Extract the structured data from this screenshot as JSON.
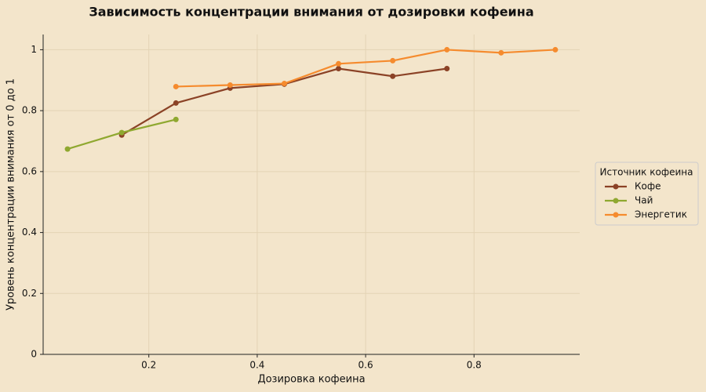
{
  "chart_data": {
    "type": "line",
    "title": "Зависимость концентрации внимания от дозировки кофеина",
    "x_label": "Дозировка кофеина",
    "y_label": "Уровень концентрации внимания от 0 до 1",
    "legend_title": "Источник кофеина",
    "legend": "right",
    "grid": true,
    "xlim": [
      0.005,
      0.995
    ],
    "xticks": [
      0.2,
      0.4,
      0.6,
      0.8
    ],
    "ylim": [
      0,
      1.05
    ],
    "yticks": [
      0.0,
      0.2,
      0.4,
      0.6,
      0.8,
      1.0
    ],
    "series": [
      {
        "name": "Кофе",
        "color": "#8b4226",
        "x": [
          0.15,
          0.25,
          0.35,
          0.45,
          0.55,
          0.65,
          0.75
        ],
        "values": [
          0.72,
          0.825,
          0.874,
          0.887,
          0.938,
          0.913,
          0.938
        ]
      },
      {
        "name": "Чай",
        "color": "#8fa830",
        "x": [
          0.05,
          0.15,
          0.25
        ],
        "values": [
          0.674,
          0.728,
          0.771
        ]
      },
      {
        "name": "Энергетик",
        "color": "#f58b2e",
        "x": [
          0.25,
          0.35,
          0.45,
          0.55,
          0.65,
          0.75,
          0.85,
          0.95
        ],
        "values": [
          0.879,
          0.884,
          0.889,
          0.954,
          0.964,
          1.0,
          0.99,
          1.0
        ]
      }
    ]
  }
}
